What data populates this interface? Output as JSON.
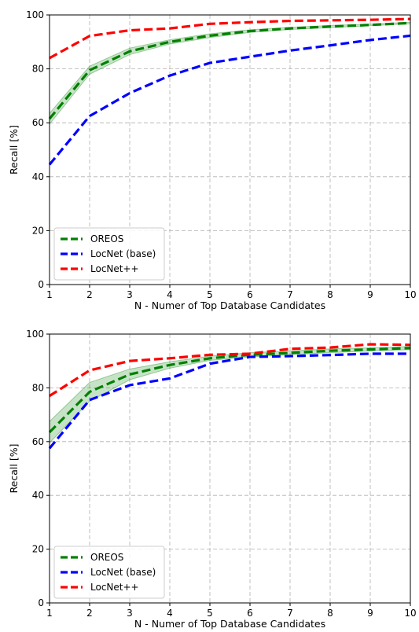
{
  "chart_data": [
    {
      "type": "line",
      "xlabel": "N - Numer of Top Database Candidates",
      "ylabel": "Recall [%]",
      "x": [
        1,
        2,
        3,
        4,
        5,
        6,
        7,
        8,
        9,
        10
      ],
      "xlim": [
        1,
        10
      ],
      "ylim": [
        0,
        100
      ],
      "xticks": [
        "1",
        "2",
        "3",
        "4",
        "5",
        "6",
        "7",
        "8",
        "9",
        "10"
      ],
      "yticks": [
        "0",
        "20",
        "40",
        "60",
        "80",
        "100"
      ],
      "grid": true,
      "legend_position": "lower-left",
      "series": [
        {
          "name": "OREOS",
          "color": "#008000",
          "values": [
            61.5,
            79.5,
            86.5,
            90,
            92.3,
            94,
            95,
            95.7,
            96.3,
            97
          ],
          "band_low": [
            59.5,
            78,
            85.3,
            89.2,
            91.6,
            93.5,
            94.6,
            95.3,
            96,
            96.7
          ],
          "band_high": [
            63.5,
            81,
            87.7,
            90.8,
            93,
            94.5,
            95.4,
            96.1,
            96.6,
            97.3
          ]
        },
        {
          "name": "LocNet (base)",
          "color": "#0000ff",
          "values": [
            44.5,
            62.5,
            71,
            77.5,
            82.2,
            84.5,
            86.8,
            88.7,
            90.7,
            92.3
          ]
        },
        {
          "name": "LocNet++",
          "color": "#ff0000",
          "values": [
            84,
            92.2,
            94.3,
            95,
            96.7,
            97.3,
            97.8,
            98,
            98.2,
            98.5
          ]
        }
      ]
    },
    {
      "type": "line",
      "xlabel": "N - Numer of Top Database Candidates",
      "ylabel": "Recall [%]",
      "x": [
        1,
        2,
        3,
        4,
        5,
        6,
        7,
        8,
        9,
        10
      ],
      "xlim": [
        1,
        10
      ],
      "ylim": [
        0,
        100
      ],
      "xticks": [
        "1",
        "2",
        "3",
        "4",
        "5",
        "6",
        "7",
        "8",
        "9",
        "10"
      ],
      "yticks": [
        "0",
        "20",
        "40",
        "60",
        "80",
        "100"
      ],
      "grid": true,
      "legend_position": "lower-left",
      "series": [
        {
          "name": "OREOS",
          "color": "#008000",
          "values": [
            63.5,
            78.5,
            85,
            88.5,
            91,
            92.3,
            93,
            93.8,
            94.3,
            94.8
          ],
          "band_low": [
            59.5,
            75,
            83,
            87.3,
            90.2,
            91.5,
            92.3,
            93.1,
            93.7,
            94.2
          ],
          "band_high": [
            67.5,
            82,
            87,
            89.7,
            91.8,
            93.1,
            93.7,
            94.5,
            94.9,
            95.4
          ]
        },
        {
          "name": "LocNet (base)",
          "color": "#0000ff",
          "values": [
            57.5,
            75.5,
            81,
            83.5,
            89,
            91.5,
            91.8,
            92.2,
            92.7,
            92.7
          ]
        },
        {
          "name": "LocNet++",
          "color": "#ff0000",
          "values": [
            77,
            86.5,
            90,
            91,
            92.3,
            92.7,
            94.5,
            95,
            96.2,
            96
          ]
        }
      ]
    }
  ]
}
